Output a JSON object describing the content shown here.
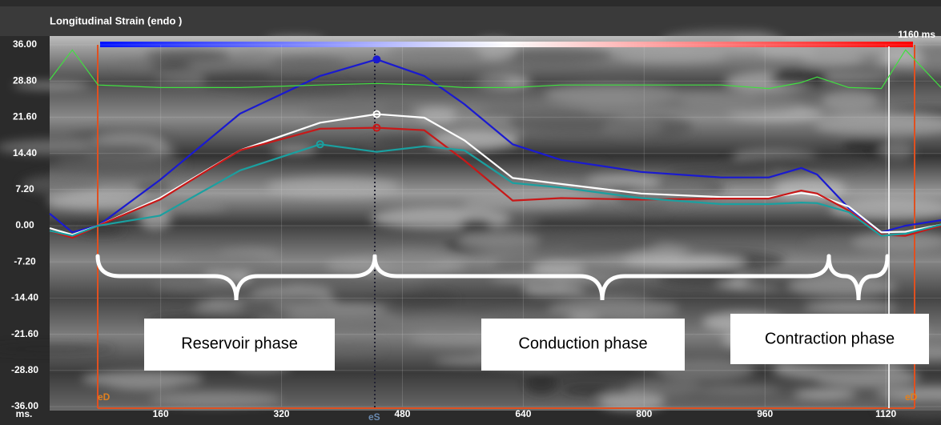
{
  "chart_data": {
    "type": "line",
    "title": "Longitudinal Strain (endo )",
    "x_label": "ms.",
    "cursor_label": "1160 ms",
    "event_labels": [
      "eD",
      "eS",
      "eD"
    ],
    "annotations": [
      "Reservoir phase",
      "Conduction phase",
      "Contraction phase"
    ],
    "x": [
      13,
      43,
      77,
      159,
      265,
      371,
      446,
      509,
      562,
      626,
      690,
      796,
      902,
      965,
      1008,
      1029,
      1071,
      1114,
      1146,
      1193
    ],
    "series": [
      {
        "color": "#1a1ad0",
        "values": [
          2.4,
          -1.3,
          0,
          9.1,
          22.3,
          29.8,
          33.1,
          29.8,
          24.2,
          16.2,
          13.1,
          10.7,
          9.6,
          9.6,
          11.5,
          10.2,
          3.5,
          -1.3,
          0,
          1.1
        ]
      },
      {
        "color": "#ffffff",
        "values": [
          -0.5,
          -1.8,
          0,
          5.5,
          15,
          20.5,
          22.2,
          21.5,
          17,
          9.5,
          8.3,
          6.4,
          5.7,
          5.7,
          6.5,
          6.1,
          3.8,
          -1.3,
          -1.2,
          0.2
        ]
      },
      {
        "color": "#c81818",
        "values": [
          -1,
          -2.4,
          0,
          5.2,
          15,
          19.3,
          19.5,
          19,
          13,
          5,
          5.5,
          5.2,
          5.4,
          5.4,
          7,
          6.4,
          3,
          -1.8,
          -2,
          0
        ]
      },
      {
        "color": "#1aa0a0",
        "values": [
          -1,
          -2,
          0,
          2,
          11,
          16.2,
          14.7,
          15.8,
          15,
          8.5,
          7.6,
          5.5,
          4.3,
          4.3,
          4.6,
          4.5,
          2.7,
          -2,
          -1.6,
          0.2
        ]
      },
      {
        "color": "#40e040",
        "values": [
          29,
          35,
          28,
          27.5,
          27.5,
          28,
          28.3,
          28,
          27.5,
          27.5,
          28,
          28,
          28,
          27.3,
          28.5,
          29.6,
          27.5,
          27.3,
          35,
          27.5
        ]
      }
    ],
    "xlim": [
      13,
      1193
    ],
    "ylim": [
      -36,
      36
    ],
    "xticks": [
      160,
      320,
      480,
      640,
      800,
      960,
      1120
    ],
    "yticks": [
      {
        "value": 36,
        "label": "36.00"
      },
      {
        "value": 28.8,
        "label": "28.80"
      },
      {
        "value": 21.6,
        "label": "21.60"
      },
      {
        "value": 14.4,
        "label": "14.40"
      },
      {
        "value": 7.2,
        "label": "7.20"
      },
      {
        "value": 0,
        "label": "0.00"
      },
      {
        "value": -7.2,
        "label": "-7.20"
      },
      {
        "value": -14.4,
        "label": "-14.40"
      },
      {
        "value": -21.6,
        "label": "-21.60"
      },
      {
        "value": -28.8,
        "label": "-28.80"
      },
      {
        "value": -36,
        "label": "-36.00"
      }
    ],
    "grid": true
  }
}
